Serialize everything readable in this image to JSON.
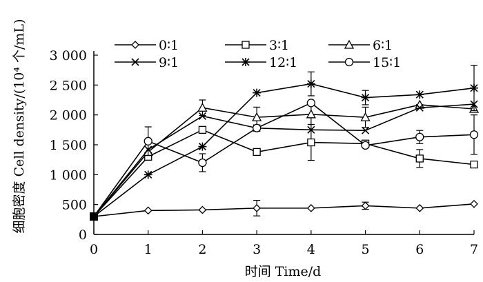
{
  "chart_data": {
    "type": "line",
    "xlabel": "时间 Time/d",
    "ylabel": "细胞密度 Cell density/(10⁴ 个/mL)",
    "x": [
      0,
      1,
      2,
      3,
      4,
      5,
      6,
      7
    ],
    "x_ticks": [
      0,
      1,
      2,
      3,
      4,
      5,
      6,
      7
    ],
    "y_ticks": [
      0,
      500,
      1000,
      1500,
      2000,
      2500,
      3000
    ],
    "y_tick_labels": [
      "0",
      "500",
      "1 000",
      "1 500",
      "2 000",
      "2 500",
      "3 000"
    ],
    "xlim": [
      0,
      7
    ],
    "ylim": [
      0,
      3000
    ],
    "grid": false,
    "legend_position": "top",
    "series": [
      {
        "name": "0∶1",
        "marker": "diamond",
        "values": [
          300,
          400,
          410,
          440,
          440,
          480,
          440,
          510
        ],
        "errors": [
          0,
          0,
          0,
          130,
          0,
          60,
          0,
          0
        ]
      },
      {
        "name": "3∶1",
        "marker": "square",
        "values": [
          300,
          1300,
          1750,
          1380,
          1540,
          1520,
          1270,
          1170
        ],
        "errors": [
          0,
          0,
          0,
          0,
          300,
          0,
          150,
          0
        ]
      },
      {
        "name": "6∶1",
        "marker": "triangle",
        "values": [
          300,
          1380,
          2120,
          1960,
          2010,
          1960,
          2170,
          2100
        ],
        "errors": [
          0,
          0,
          130,
          170,
          170,
          170,
          0,
          0
        ]
      },
      {
        "name": "9∶1",
        "marker": "cross",
        "values": [
          300,
          1420,
          1980,
          1780,
          1750,
          1740,
          2120,
          2180
        ],
        "errors": [
          0,
          0,
          0,
          0,
          0,
          0,
          0,
          0
        ]
      },
      {
        "name": "12∶1",
        "marker": "star",
        "values": [
          300,
          1000,
          1470,
          2370,
          2520,
          2290,
          2340,
          2450
        ],
        "errors": [
          0,
          0,
          0,
          0,
          200,
          120,
          0,
          380
        ]
      },
      {
        "name": "15∶1",
        "marker": "circle",
        "values": [
          300,
          1560,
          1200,
          1780,
          2200,
          1490,
          1630,
          1670
        ],
        "errors": [
          0,
          240,
          150,
          0,
          0,
          0,
          110,
          330
        ]
      }
    ]
  }
}
